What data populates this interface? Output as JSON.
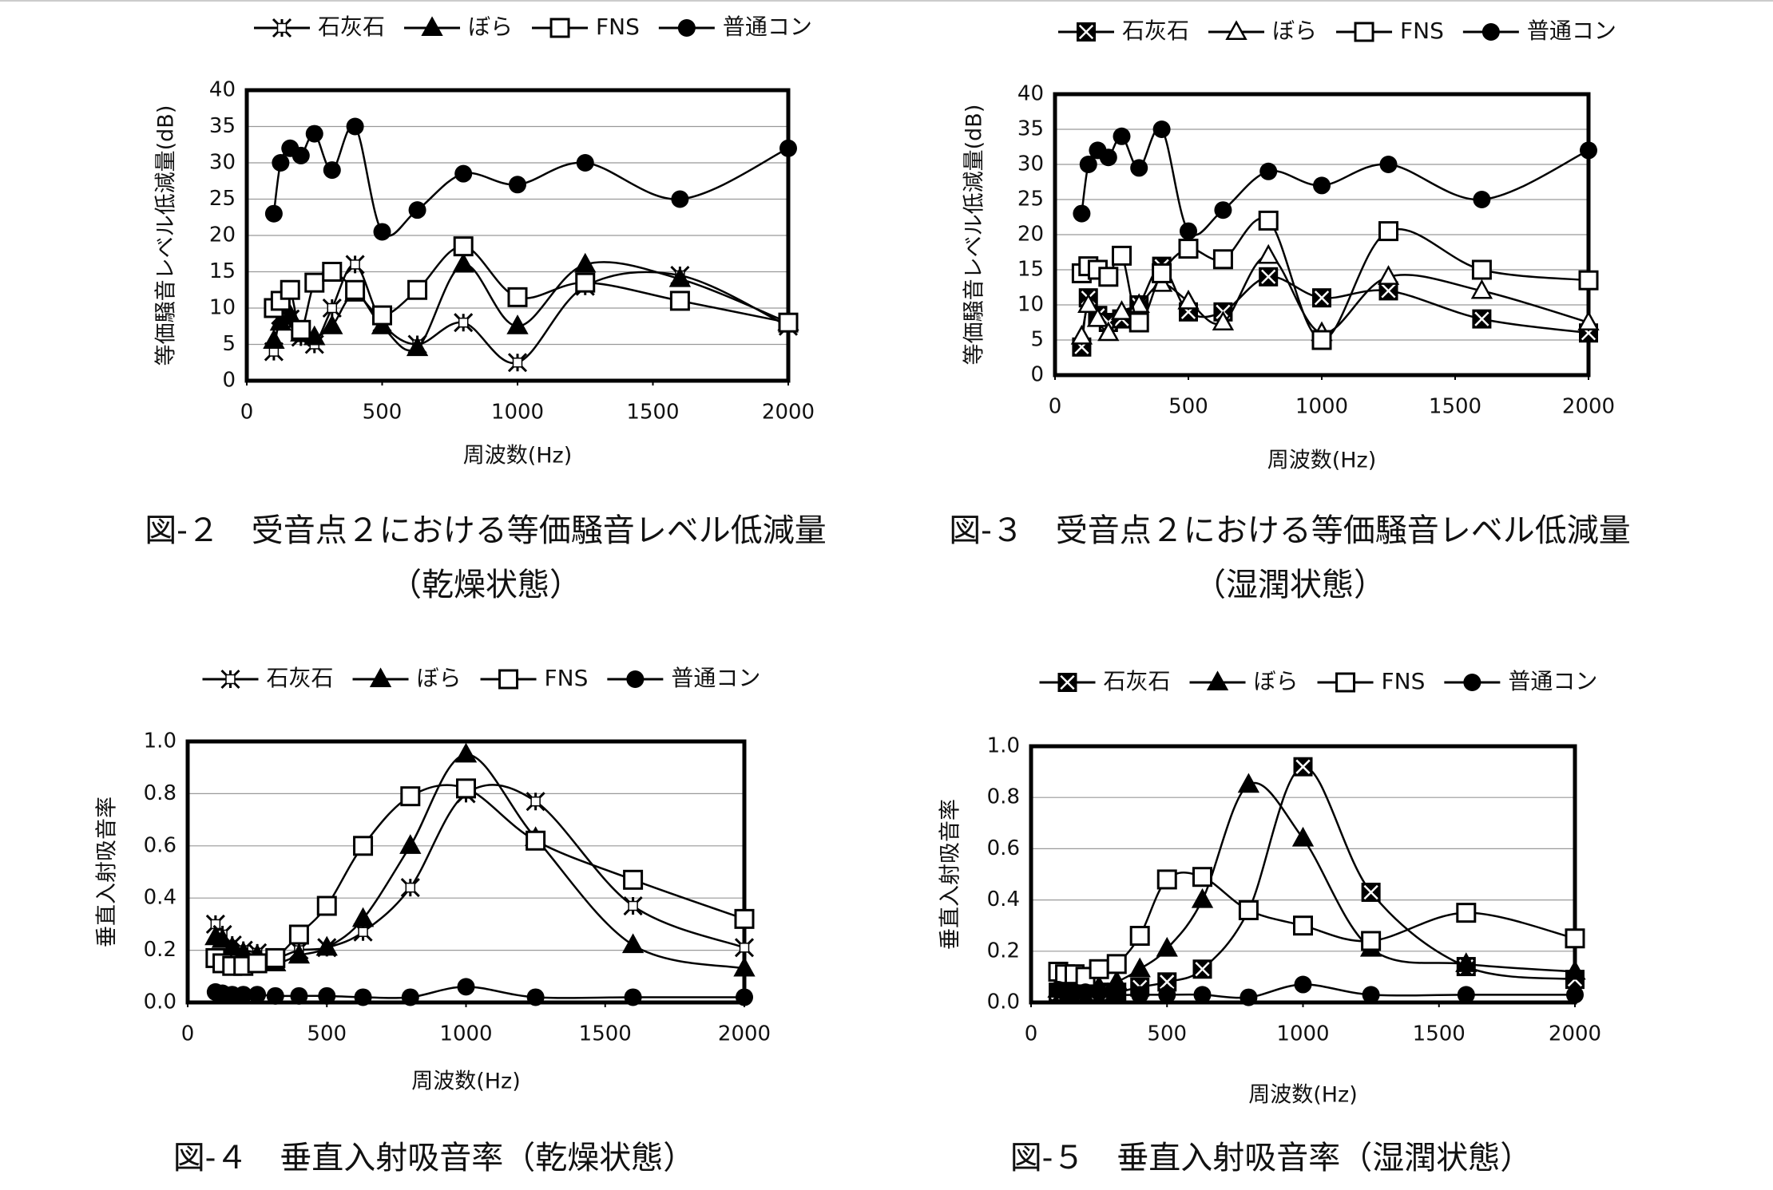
{
  "chart_data": [
    {
      "type": "line",
      "x": [
        100,
        125,
        160,
        200,
        250,
        315,
        400,
        500,
        630,
        800,
        1000,
        1250,
        1600,
        2000
      ],
      "xlim": [
        0,
        2000
      ],
      "xticks": [
        0,
        500,
        1000,
        1500,
        2000
      ],
      "ylim": [
        0,
        40
      ],
      "yticks": [
        0,
        5,
        10,
        15,
        20,
        25,
        30,
        35,
        40
      ],
      "xlabel": "周波数(Hz)",
      "ylabel": "等価騒音レベル低減量(dB)",
      "grid": true,
      "caption": [
        "図-２　受音点２における等価騒音レベル低減量",
        "（乾燥状態）"
      ],
      "series": [
        {
          "name": "石灰石",
          "marker": "x",
          "color": "#000000",
          "values": [
            4,
            9,
            8.5,
            6,
            5,
            10,
            16,
            8,
            5,
            8,
            2.5,
            13,
            14.5,
            7.5
          ]
        },
        {
          "name": "ぼら",
          "marker": "tri",
          "color": "#000000",
          "values": [
            5.5,
            8,
            9,
            6.5,
            6,
            7.5,
            12,
            7.5,
            4.5,
            16,
            7.5,
            16,
            14,
            8
          ]
        },
        {
          "name": "FNS",
          "marker": "square-open",
          "color": "#000000",
          "values": [
            10,
            11,
            12.5,
            7,
            13.5,
            15,
            12.5,
            9,
            12.5,
            18.5,
            11.5,
            13.5,
            11,
            8
          ]
        },
        {
          "name": "普通コン",
          "marker": "circle",
          "color": "#000000",
          "values": [
            23,
            30,
            32,
            31,
            34,
            29,
            35,
            20.5,
            23.5,
            28.5,
            27,
            30,
            25,
            32
          ]
        }
      ]
    },
    {
      "type": "line",
      "x": [
        100,
        125,
        160,
        200,
        250,
        315,
        400,
        500,
        630,
        800,
        1000,
        1250,
        1600,
        2000
      ],
      "xlim": [
        0,
        2000
      ],
      "xticks": [
        0,
        500,
        1000,
        1500,
        2000
      ],
      "ylim": [
        0,
        40
      ],
      "yticks": [
        0,
        5,
        10,
        15,
        20,
        25,
        30,
        35,
        40
      ],
      "xlabel": "周波数(Hz)",
      "ylabel": "等価騒音レベル低減量(dB)",
      "grid": true,
      "caption": [
        "図-３　受音点２における等価騒音レベル低減量",
        "（湿潤状態）"
      ],
      "series": [
        {
          "name": "石灰石",
          "marker": "boxx",
          "color": "#000000",
          "values": [
            4,
            11,
            8.5,
            7.5,
            8,
            10,
            15.5,
            9,
            9,
            14,
            11,
            12,
            8,
            6
          ]
        },
        {
          "name": "ぼら",
          "marker": "tri-open",
          "color": "#000000",
          "values": [
            5.5,
            10,
            8,
            6,
            9,
            10,
            13,
            10.5,
            7.5,
            17,
            6,
            14,
            12,
            7.5
          ]
        },
        {
          "name": "FNS",
          "marker": "square-open",
          "color": "#000000",
          "values": [
            14.5,
            15.5,
            15,
            14,
            17,
            7.5,
            14.5,
            18,
            16.5,
            22,
            5,
            20.5,
            15,
            13.5
          ]
        },
        {
          "name": "普通コン",
          "marker": "circle",
          "color": "#000000",
          "values": [
            23,
            30,
            32,
            31,
            34,
            29.5,
            35,
            20.5,
            23.5,
            29,
            27,
            30,
            25,
            32
          ]
        }
      ]
    },
    {
      "type": "line",
      "x": [
        100,
        125,
        160,
        200,
        250,
        315,
        400,
        500,
        630,
        800,
        1000,
        1250,
        1600,
        2000
      ],
      "xlim": [
        0,
        2000
      ],
      "xticks": [
        0,
        500,
        1000,
        1500,
        2000
      ],
      "ylim": [
        0,
        1
      ],
      "yticks": [
        {
          "value": 0,
          "label": "0.0"
        },
        0.2,
        0.4,
        0.6,
        0.8,
        {
          "value": 1,
          "label": "1.0"
        }
      ],
      "xlabel": "周波数(Hz)",
      "ylabel": "垂直入射吸音率",
      "grid": true,
      "caption": [
        "図-４　垂直入射吸音率（乾燥状態）"
      ],
      "series": [
        {
          "name": "石灰石",
          "marker": "x",
          "color": "#000000",
          "values": [
            0.3,
            0.26,
            0.22,
            0.2,
            0.19,
            0.17,
            0.2,
            0.21,
            0.27,
            0.44,
            0.8,
            0.77,
            0.37,
            0.21
          ]
        },
        {
          "name": "ぼら",
          "marker": "tri",
          "color": "#000000",
          "values": [
            0.25,
            0.24,
            0.21,
            0.19,
            0.18,
            0.15,
            0.18,
            0.21,
            0.32,
            0.6,
            0.95,
            0.63,
            0.22,
            0.13
          ]
        },
        {
          "name": "FNS",
          "marker": "square-open",
          "color": "#000000",
          "values": [
            0.17,
            0.15,
            0.14,
            0.14,
            0.15,
            0.17,
            0.26,
            0.37,
            0.6,
            0.79,
            0.82,
            0.62,
            0.47,
            0.32
          ]
        },
        {
          "name": "普通コン",
          "marker": "circle",
          "color": "#000000",
          "values": [
            0.04,
            0.035,
            0.03,
            0.03,
            0.03,
            0.025,
            0.025,
            0.025,
            0.02,
            0.02,
            0.06,
            0.02,
            0.02,
            0.02
          ]
        }
      ]
    },
    {
      "type": "line",
      "x": [
        100,
        125,
        160,
        200,
        250,
        315,
        400,
        500,
        630,
        800,
        1000,
        1250,
        1600,
        2000
      ],
      "xlim": [
        0,
        2000
      ],
      "xticks": [
        0,
        500,
        1000,
        1500,
        2000
      ],
      "ylim": [
        0,
        1
      ],
      "yticks": [
        {
          "value": 0,
          "label": "0.0"
        },
        0.2,
        0.4,
        0.6,
        0.8,
        {
          "value": 1,
          "label": "1.0"
        }
      ],
      "xlabel": "周波数(Hz)",
      "ylabel": "垂直入射吸音率",
      "grid": true,
      "caption": [
        "図-５　垂直入射吸音率（湿潤状態）"
      ],
      "series": [
        {
          "name": "石灰石",
          "marker": "boxx",
          "color": "#000000",
          "values": [
            0.04,
            0.04,
            0.04,
            0.04,
            0.04,
            0.04,
            0.06,
            0.08,
            0.13,
            0.36,
            0.92,
            0.43,
            0.14,
            0.09
          ]
        },
        {
          "name": "ぼら",
          "marker": "tri",
          "color": "#000000",
          "values": [
            0.05,
            0.05,
            0.05,
            0.05,
            0.06,
            0.08,
            0.13,
            0.21,
            0.4,
            0.85,
            0.64,
            0.21,
            0.15,
            0.12
          ]
        },
        {
          "name": "FNS",
          "marker": "square-open",
          "color": "#000000",
          "values": [
            0.12,
            0.11,
            0.11,
            0.1,
            0.13,
            0.15,
            0.26,
            0.48,
            0.49,
            0.36,
            0.3,
            0.24,
            0.35,
            0.25
          ]
        },
        {
          "name": "普通コン",
          "marker": "circle",
          "color": "#000000",
          "values": [
            0.05,
            0.04,
            0.04,
            0.04,
            0.04,
            0.03,
            0.03,
            0.03,
            0.03,
            0.02,
            0.07,
            0.03,
            0.03,
            0.03
          ]
        }
      ]
    }
  ]
}
